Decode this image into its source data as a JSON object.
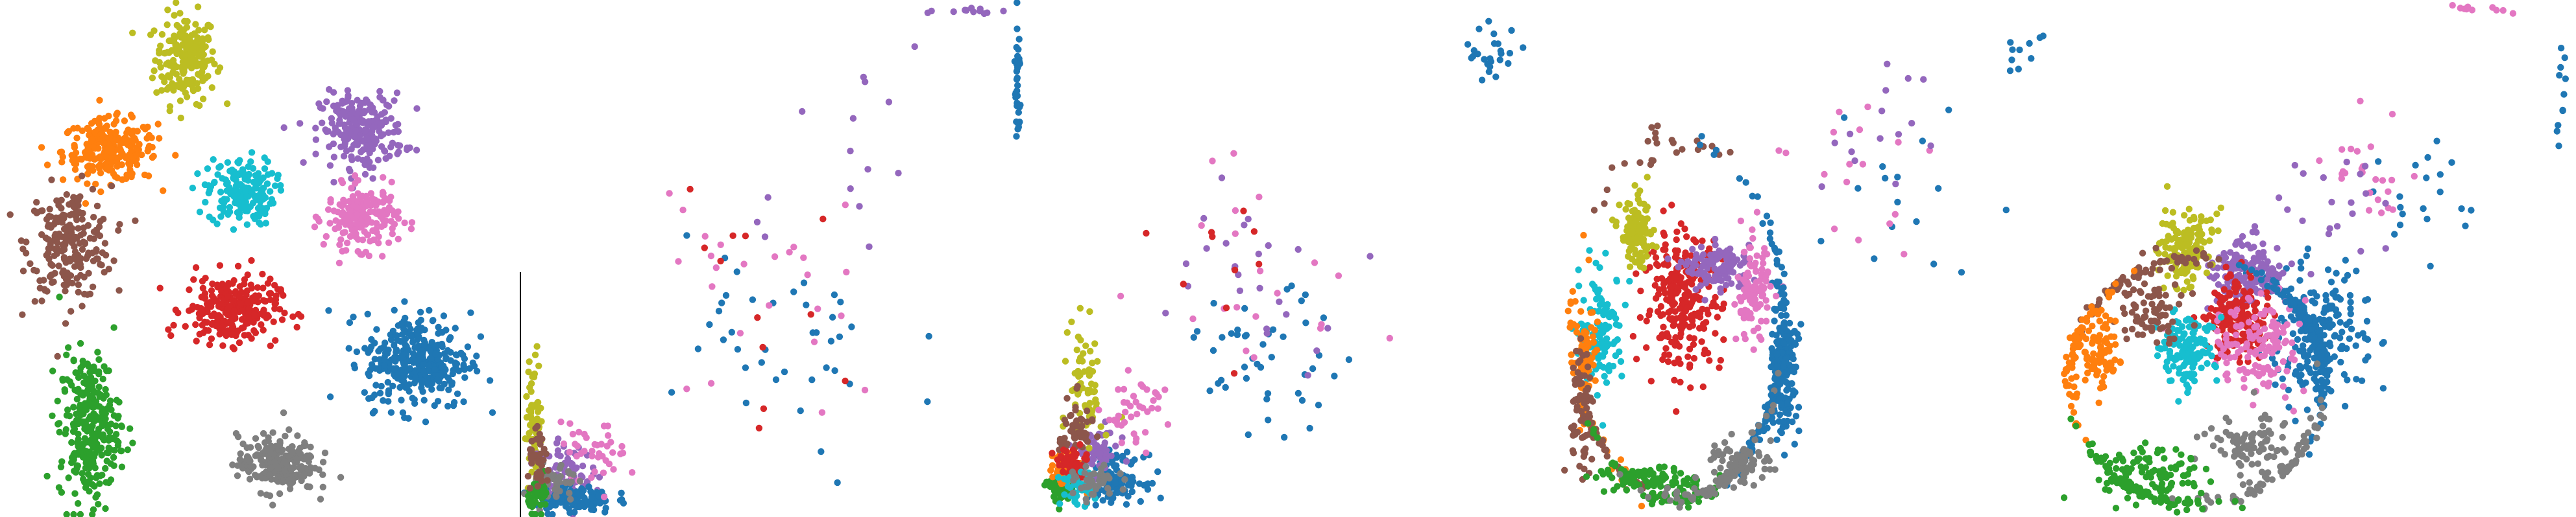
{
  "palette": {
    "blue": "#1f77b4",
    "orange": "#ff7f0e",
    "green": "#2ca02c",
    "red": "#d62728",
    "purple": "#9467bd",
    "brown": "#8c564b",
    "pink": "#e377c2",
    "gray": "#7f7f7f",
    "olive": "#bcbd22",
    "cyan": "#17becf"
  },
  "chart_data": [
    {
      "type": "scatter",
      "axes": "none",
      "grid": false,
      "legend": "none",
      "xlim": [
        0,
        1
      ],
      "ylim": [
        0,
        1
      ],
      "clusters": [
        {
          "color": "olive",
          "center": [
            0.36,
            0.89
          ],
          "spread": [
            0.055,
            0.08
          ],
          "count": 200
        },
        {
          "color": "orange",
          "center": [
            0.21,
            0.71
          ],
          "spread": [
            0.085,
            0.055
          ],
          "count": 240
        },
        {
          "color": "brown",
          "center": [
            0.13,
            0.53
          ],
          "spread": [
            0.075,
            0.1
          ],
          "count": 230
        },
        {
          "color": "cyan",
          "center": [
            0.47,
            0.63
          ],
          "spread": [
            0.06,
            0.06
          ],
          "count": 180
        },
        {
          "color": "purple",
          "center": [
            0.71,
            0.75
          ],
          "spread": [
            0.075,
            0.065
          ],
          "count": 240
        },
        {
          "color": "pink",
          "center": [
            0.71,
            0.58
          ],
          "spread": [
            0.065,
            0.055
          ],
          "count": 200
        },
        {
          "color": "red",
          "center": [
            0.45,
            0.4
          ],
          "spread": [
            0.085,
            0.06
          ],
          "count": 260
        },
        {
          "color": "blue",
          "center": [
            0.82,
            0.3
          ],
          "spread": [
            0.095,
            0.085
          ],
          "count": 330
        },
        {
          "color": "green",
          "center": [
            0.17,
            0.17
          ],
          "spread": [
            0.055,
            0.13
          ],
          "count": 290
        },
        {
          "color": "gray",
          "center": [
            0.54,
            0.1
          ],
          "spread": [
            0.07,
            0.05
          ],
          "count": 230
        }
      ]
    },
    {
      "type": "scatter",
      "axes": "left-spine",
      "grid": false,
      "legend": "none",
      "xlim": [
        0,
        1
      ],
      "ylim": [
        0,
        1
      ],
      "clusters": [
        {
          "color": "olive",
          "center": [
            0.02,
            0.18
          ],
          "spread": [
            0.015,
            0.12
          ],
          "count": 70
        },
        {
          "color": "purple",
          "center": [
            0.08,
            0.08
          ],
          "spread": [
            0.05,
            0.05
          ],
          "count": 90
        },
        {
          "color": "blue",
          "center": [
            0.1,
            0.03
          ],
          "spread": [
            0.07,
            0.025
          ],
          "count": 120
        },
        {
          "color": "pink",
          "center": [
            0.14,
            0.12
          ],
          "spread": [
            0.06,
            0.05
          ],
          "count": 40
        },
        {
          "color": "gray",
          "center": [
            0.06,
            0.06
          ],
          "spread": [
            0.04,
            0.04
          ],
          "count": 50
        },
        {
          "color": "green",
          "center": [
            0.03,
            0.04
          ],
          "spread": [
            0.02,
            0.03
          ],
          "count": 40
        },
        {
          "color": "brown",
          "center": [
            0.03,
            0.1
          ],
          "spread": [
            0.02,
            0.05
          ],
          "count": 40
        },
        {
          "color": "blue",
          "center": [
            0.99,
            0.83
          ],
          "spread": [
            0.006,
            0.12
          ],
          "count": 35
        },
        {
          "color": "blue",
          "center": [
            0.5,
            0.3
          ],
          "spread": [
            0.25,
            0.22
          ],
          "count": 40
        },
        {
          "color": "pink",
          "center": [
            0.5,
            0.45
          ],
          "spread": [
            0.22,
            0.25
          ],
          "count": 25
        },
        {
          "color": "purple",
          "center": [
            0.6,
            0.7
          ],
          "spread": [
            0.25,
            0.2
          ],
          "count": 15
        },
        {
          "color": "red",
          "center": [
            0.45,
            0.4
          ],
          "spread": [
            0.2,
            0.2
          ],
          "count": 12
        },
        {
          "color": "purple",
          "center": [
            0.9,
            0.985
          ],
          "spread": [
            0.06,
            0.008
          ],
          "count": 12
        }
      ]
    },
    {
      "type": "scatter",
      "axes": "none",
      "grid": false,
      "legend": "none",
      "xlim": [
        0,
        1
      ],
      "ylim": [
        0,
        1
      ],
      "clusters": [
        {
          "color": "blue",
          "center": [
            0.16,
            0.07
          ],
          "spread": [
            0.05,
            0.04
          ],
          "count": 120
        },
        {
          "color": "purple",
          "center": [
            0.12,
            0.12
          ],
          "spread": [
            0.04,
            0.04
          ],
          "count": 60
        },
        {
          "color": "green",
          "center": [
            0.05,
            0.05
          ],
          "spread": [
            0.025,
            0.03
          ],
          "count": 60
        },
        {
          "color": "orange",
          "center": [
            0.06,
            0.09
          ],
          "spread": [
            0.03,
            0.03
          ],
          "count": 60
        },
        {
          "color": "olive",
          "center": [
            0.1,
            0.25
          ],
          "spread": [
            0.03,
            0.12
          ],
          "count": 70
        },
        {
          "color": "brown",
          "center": [
            0.08,
            0.16
          ],
          "spread": [
            0.03,
            0.06
          ],
          "count": 60
        },
        {
          "color": "red",
          "center": [
            0.07,
            0.1
          ],
          "spread": [
            0.03,
            0.03
          ],
          "count": 50
        },
        {
          "color": "cyan",
          "center": [
            0.08,
            0.05
          ],
          "spread": [
            0.03,
            0.03
          ],
          "count": 40
        },
        {
          "color": "pink",
          "center": [
            0.2,
            0.2
          ],
          "spread": [
            0.06,
            0.06
          ],
          "count": 40
        },
        {
          "color": "gray",
          "center": [
            0.12,
            0.06
          ],
          "spread": [
            0.04,
            0.03
          ],
          "count": 40
        },
        {
          "color": "blue",
          "center": [
            0.45,
            0.3
          ],
          "spread": [
            0.15,
            0.12
          ],
          "count": 45
        },
        {
          "color": "purple",
          "center": [
            0.45,
            0.5
          ],
          "spread": [
            0.2,
            0.18
          ],
          "count": 25
        },
        {
          "color": "pink",
          "center": [
            0.45,
            0.5
          ],
          "spread": [
            0.2,
            0.2
          ],
          "count": 20
        },
        {
          "color": "blue",
          "center": [
            0.9,
            0.9
          ],
          "spread": [
            0.05,
            0.06
          ],
          "count": 25
        },
        {
          "color": "red",
          "center": [
            0.4,
            0.45
          ],
          "spread": [
            0.15,
            0.15
          ],
          "count": 10
        }
      ]
    },
    {
      "type": "scatter",
      "axes": "none",
      "grid": false,
      "legend": "none",
      "xlim": [
        0,
        1
      ],
      "ylim": [
        0,
        1
      ],
      "ring": {
        "center": [
          0.25,
          0.38
        ],
        "radius": [
          0.21,
          0.35
        ]
      },
      "clusters": [
        {
          "color": "blue",
          "center": [
            0.46,
            0.28
          ],
          "spread": [
            0.025,
            0.12
          ],
          "count": 280
        },
        {
          "color": "red",
          "center": [
            0.26,
            0.42
          ],
          "spread": [
            0.07,
            0.12
          ],
          "count": 260
        },
        {
          "color": "cyan",
          "center": [
            0.1,
            0.36
          ],
          "spread": [
            0.04,
            0.1
          ],
          "count": 120
        },
        {
          "color": "purple",
          "center": [
            0.33,
            0.48
          ],
          "spread": [
            0.06,
            0.04
          ],
          "count": 120
        },
        {
          "color": "pink",
          "center": [
            0.4,
            0.43
          ],
          "spread": [
            0.03,
            0.08
          ],
          "count": 110
        },
        {
          "color": "olive",
          "center": [
            0.17,
            0.55
          ],
          "spread": [
            0.03,
            0.06
          ],
          "count": 110
        },
        {
          "color": "orange",
          "center": [
            0.07,
            0.3
          ],
          "spread": [
            0.02,
            0.1
          ],
          "count": 100
        },
        {
          "color": "brown",
          "center": [
            0.06,
            0.2
          ],
          "spread": [
            0.02,
            0.12
          ],
          "count": 100
        },
        {
          "color": "green",
          "center": [
            0.2,
            0.07
          ],
          "spread": [
            0.1,
            0.025
          ],
          "count": 140
        },
        {
          "color": "gray",
          "center": [
            0.37,
            0.1
          ],
          "spread": [
            0.06,
            0.04
          ],
          "count": 140
        },
        {
          "color": "brown",
          "center": [
            0.2,
            0.72
          ],
          "spread": [
            0.01,
            0.06
          ],
          "count": 25
        },
        {
          "color": "blue",
          "center": [
            0.7,
            0.65
          ],
          "spread": [
            0.15,
            0.2
          ],
          "count": 30
        },
        {
          "color": "pink",
          "center": [
            0.55,
            0.65
          ],
          "spread": [
            0.12,
            0.15
          ],
          "count": 20
        },
        {
          "color": "purple",
          "center": [
            0.65,
            0.75
          ],
          "spread": [
            0.15,
            0.15
          ],
          "count": 15
        },
        {
          "color": "blue",
          "center": [
            0.93,
            0.92
          ],
          "spread": [
            0.04,
            0.05
          ],
          "count": 20
        }
      ]
    },
    {
      "type": "scatter",
      "axes": "none",
      "grid": false,
      "legend": "none",
      "xlim": [
        0,
        1
      ],
      "ylim": [
        0,
        1
      ],
      "ring": {
        "center": [
          0.26,
          0.26
        ],
        "radius": [
          0.25,
          0.24
        ]
      },
      "clusters": [
        {
          "color": "blue",
          "center": [
            0.5,
            0.35
          ],
          "spread": [
            0.09,
            0.12
          ],
          "count": 320
        },
        {
          "color": "purple",
          "center": [
            0.36,
            0.47
          ],
          "spread": [
            0.06,
            0.06
          ],
          "count": 160
        },
        {
          "color": "red",
          "center": [
            0.34,
            0.38
          ],
          "spread": [
            0.06,
            0.07
          ],
          "count": 170
        },
        {
          "color": "pink",
          "center": [
            0.38,
            0.33
          ],
          "spread": [
            0.07,
            0.08
          ],
          "count": 130
        },
        {
          "color": "cyan",
          "center": [
            0.24,
            0.32
          ],
          "spread": [
            0.05,
            0.06
          ],
          "count": 130
        },
        {
          "color": "olive",
          "center": [
            0.24,
            0.52
          ],
          "spread": [
            0.05,
            0.07
          ],
          "count": 140
        },
        {
          "color": "brown",
          "center": [
            0.17,
            0.4
          ],
          "spread": [
            0.06,
            0.08
          ],
          "count": 140
        },
        {
          "color": "orange",
          "center": [
            0.07,
            0.32
          ],
          "spread": [
            0.03,
            0.07
          ],
          "count": 140
        },
        {
          "color": "gray",
          "center": [
            0.36,
            0.14
          ],
          "spread": [
            0.07,
            0.05
          ],
          "count": 160
        },
        {
          "color": "green",
          "center": [
            0.17,
            0.08
          ],
          "spread": [
            0.1,
            0.05
          ],
          "count": 170
        },
        {
          "color": "blue",
          "center": [
            0.72,
            0.62
          ],
          "spread": [
            0.1,
            0.12
          ],
          "count": 40
        },
        {
          "color": "pink",
          "center": [
            0.6,
            0.65
          ],
          "spread": [
            0.1,
            0.12
          ],
          "count": 25
        },
        {
          "color": "purple",
          "center": [
            0.55,
            0.6
          ],
          "spread": [
            0.1,
            0.1
          ],
          "count": 20
        },
        {
          "color": "blue",
          "center": [
            0.98,
            0.85
          ],
          "spread": [
            0.01,
            0.1
          ],
          "count": 25
        },
        {
          "color": "pink",
          "center": [
            0.82,
            0.985
          ],
          "spread": [
            0.05,
            0.008
          ],
          "count": 10
        }
      ]
    }
  ]
}
